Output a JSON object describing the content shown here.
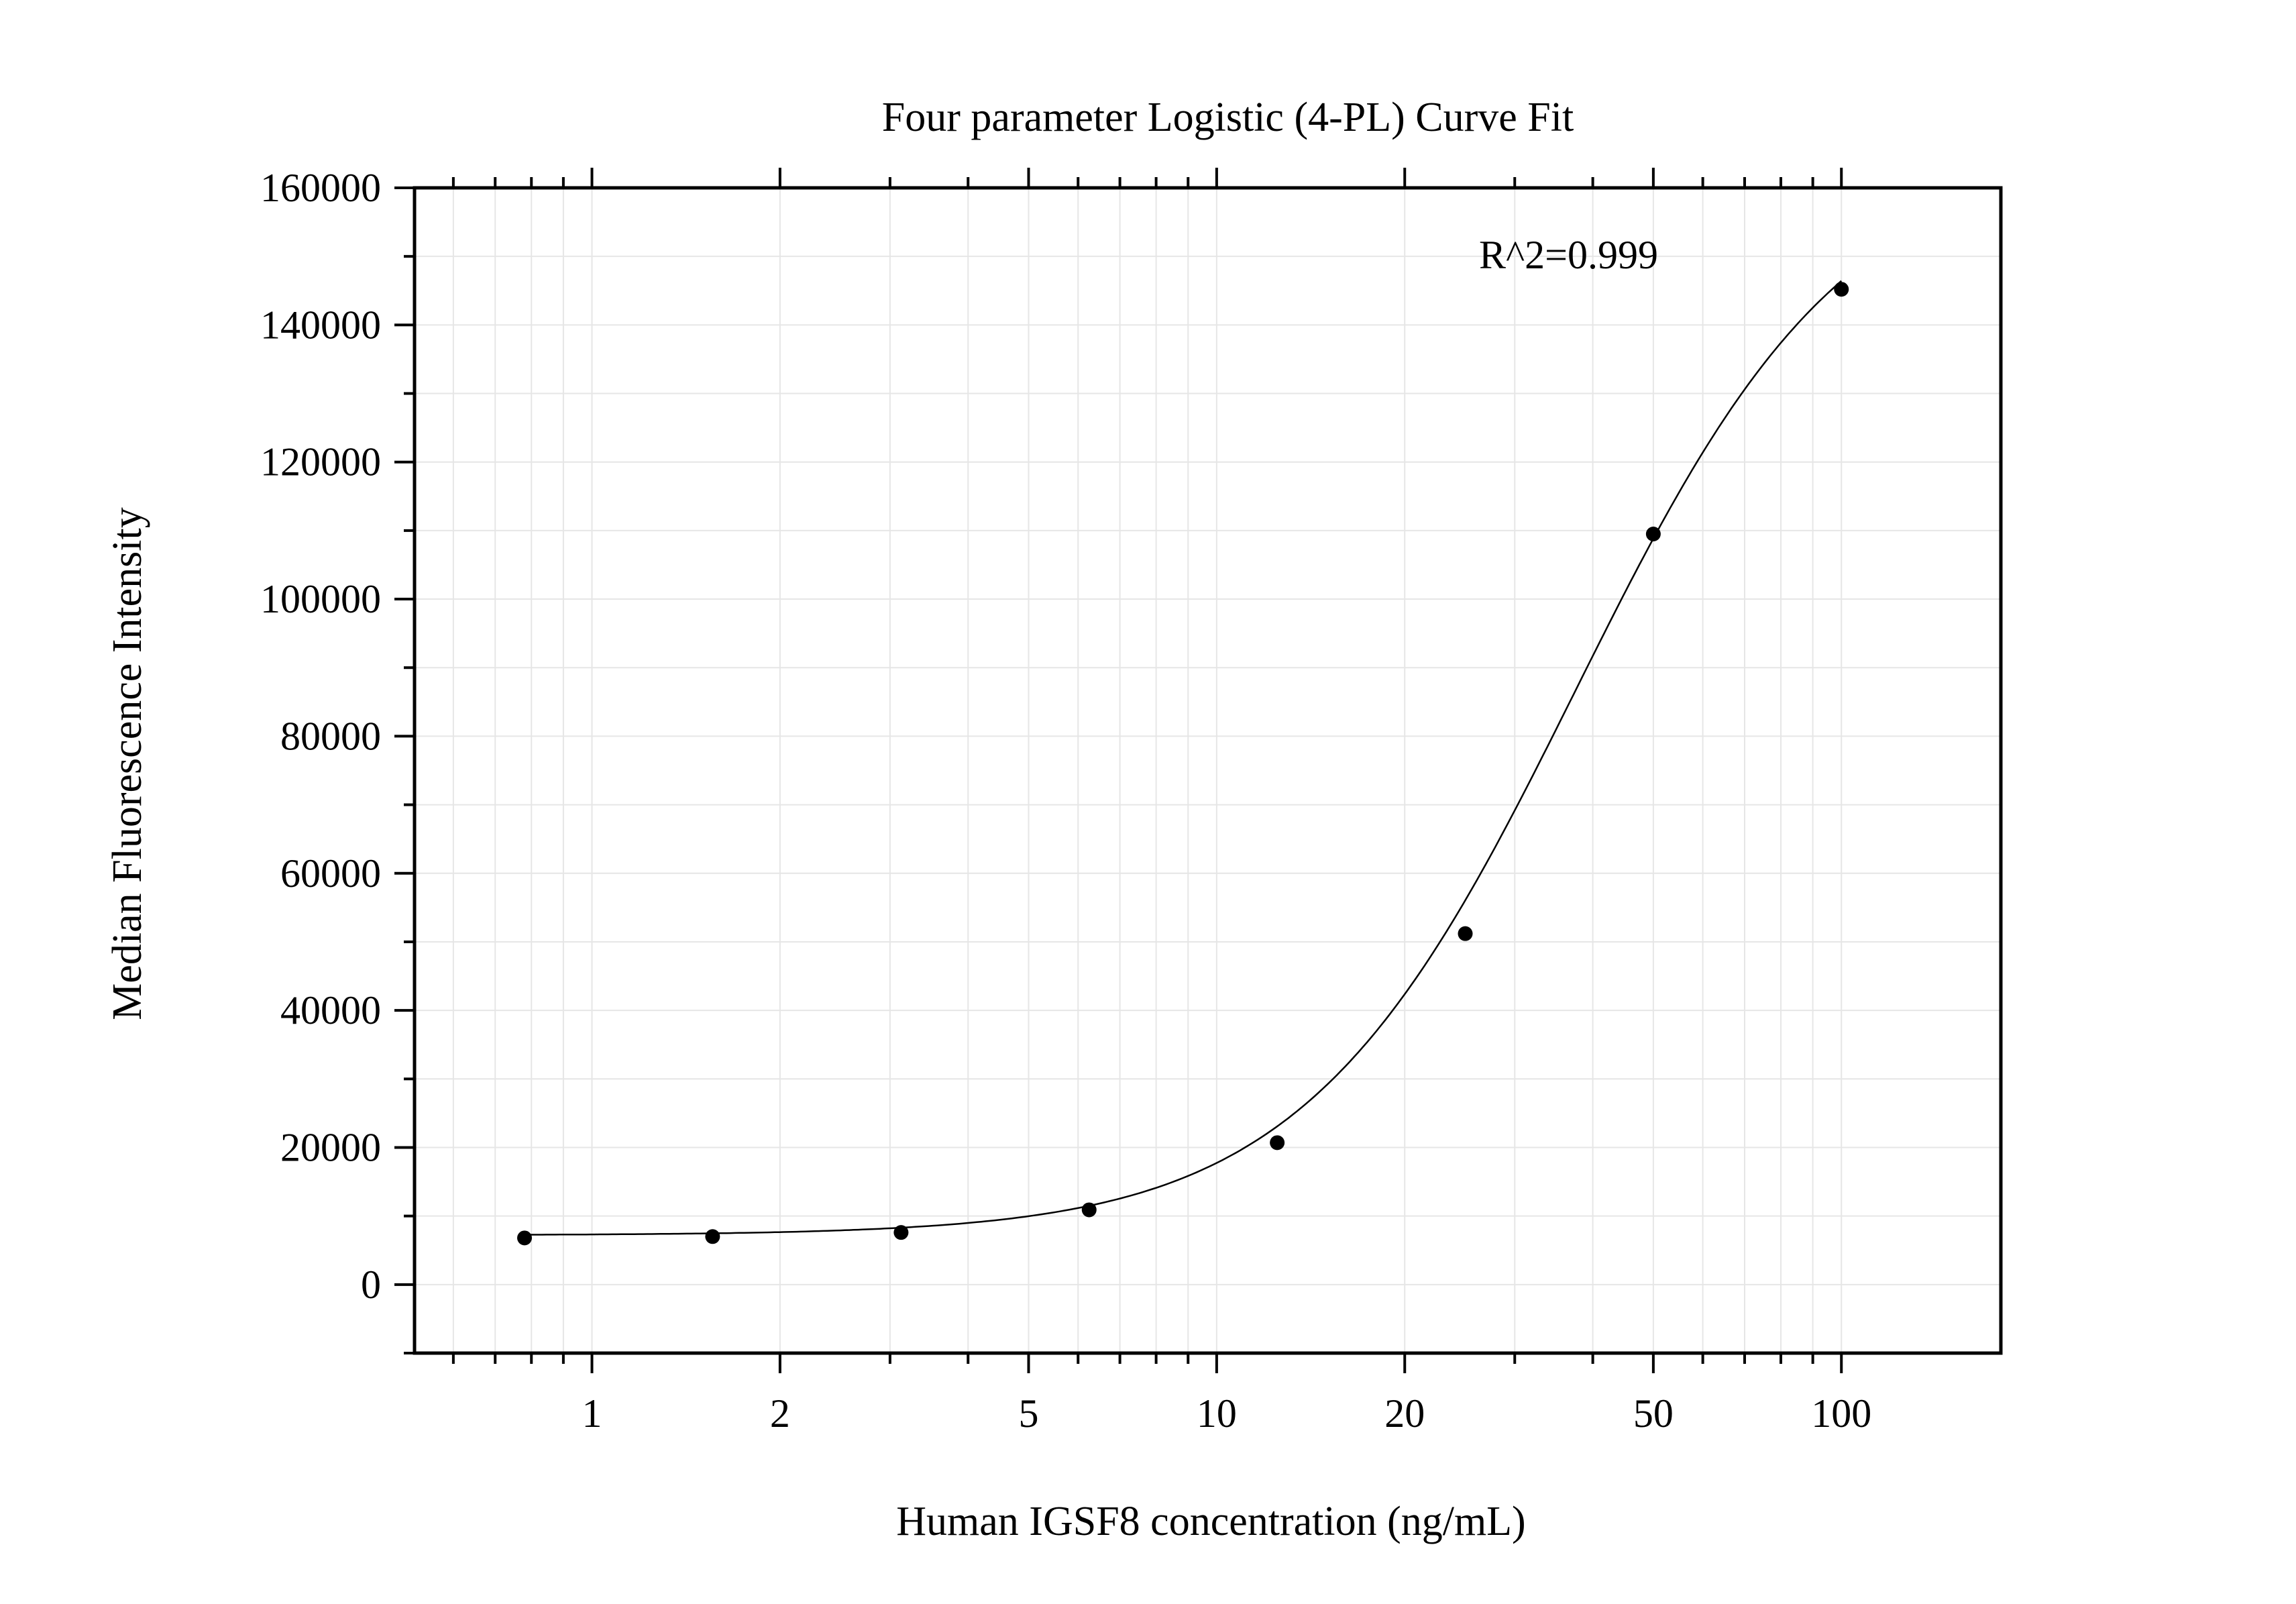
{
  "chart_data": {
    "type": "scatter",
    "title": "Four parameter Logistic (4-PL) Curve Fit",
    "xlabel": "Human IGSF8 concentration (ng/mL)",
    "ylabel": "Median Fluorescence Intensity",
    "annotation": "R^2=0.999",
    "x_scale": "log",
    "xlim": [
      0.52,
      180
    ],
    "ylim": [
      -10000,
      160000
    ],
    "grid": true,
    "x_ticks": [
      {
        "value": 1,
        "label": "1"
      },
      {
        "value": 2,
        "label": "2"
      },
      {
        "value": 5,
        "label": "5"
      },
      {
        "value": 10,
        "label": "10"
      },
      {
        "value": 20,
        "label": "20"
      },
      {
        "value": 50,
        "label": "50"
      },
      {
        "value": 100,
        "label": "100"
      }
    ],
    "y_ticks": [
      {
        "value": 0,
        "label": "0"
      },
      {
        "value": 20000,
        "label": "20000"
      },
      {
        "value": 40000,
        "label": "40000"
      },
      {
        "value": 60000,
        "label": "60000"
      },
      {
        "value": 80000,
        "label": "80000"
      },
      {
        "value": 100000,
        "label": "100000"
      },
      {
        "value": 120000,
        "label": "120000"
      },
      {
        "value": 140000,
        "label": "140000"
      },
      {
        "value": 160000,
        "label": "160000"
      }
    ],
    "points": [
      {
        "x": 0.78,
        "y": 6800
      },
      {
        "x": 1.56,
        "y": 7000
      },
      {
        "x": 3.125,
        "y": 7600
      },
      {
        "x": 6.25,
        "y": 10900
      },
      {
        "x": 12.5,
        "y": 20700
      },
      {
        "x": 25,
        "y": 51200
      },
      {
        "x": 50,
        "y": 109500
      },
      {
        "x": 100,
        "y": 145200
      }
    ],
    "fit": {
      "model": "4PL",
      "bottom": 7200,
      "top": 166000,
      "ec50": 37.5,
      "hill": 2.0,
      "x_range": [
        0.78,
        100
      ]
    }
  }
}
